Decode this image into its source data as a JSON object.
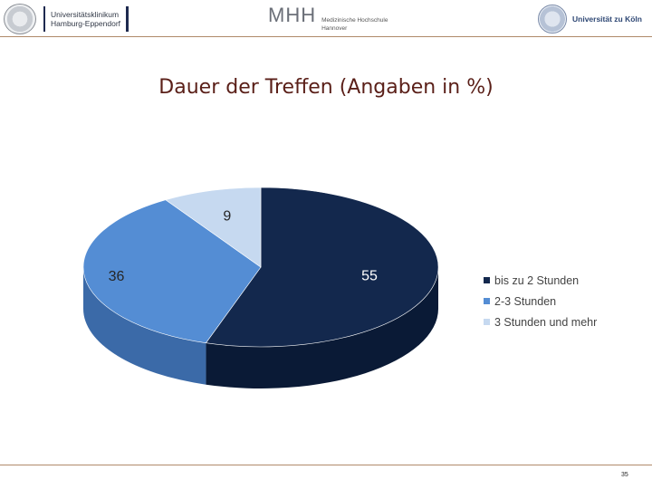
{
  "header": {
    "uke": {
      "line1": "Universitätsklinikum",
      "line2": "Hamburg-Eppendorf"
    },
    "mhh": {
      "mark": "MHH",
      "line1": "Medizinische Hochschule",
      "line2": "Hannover"
    },
    "koeln": {
      "name": "Universität zu Köln"
    }
  },
  "slide": {
    "title": "Dauer der Treffen (Angaben in %)",
    "page_number": "35"
  },
  "chart_data": {
    "type": "pie",
    "style": "3d",
    "title": "Dauer der Treffen (Angaben in %)",
    "categories": [
      "bis zu 2 Stunden",
      "2-3 Stunden",
      "3 Stunden und mehr"
    ],
    "values": [
      55,
      36,
      9
    ],
    "data_labels": [
      "55",
      "36",
      "9"
    ],
    "colors": [
      "#13284d",
      "#548dd4",
      "#c6d9f0"
    ],
    "side_colors": [
      "#0a1a36",
      "#3b6aa8",
      "#9aaec8"
    ],
    "legend": {
      "position": "right",
      "items": [
        {
          "label": "bis zu 2 Stunden",
          "color": "#13284d"
        },
        {
          "label": "2-3 Stunden",
          "color": "#548dd4"
        },
        {
          "label": "3 Stunden und mehr",
          "color": "#c6d9f0"
        }
      ]
    }
  }
}
